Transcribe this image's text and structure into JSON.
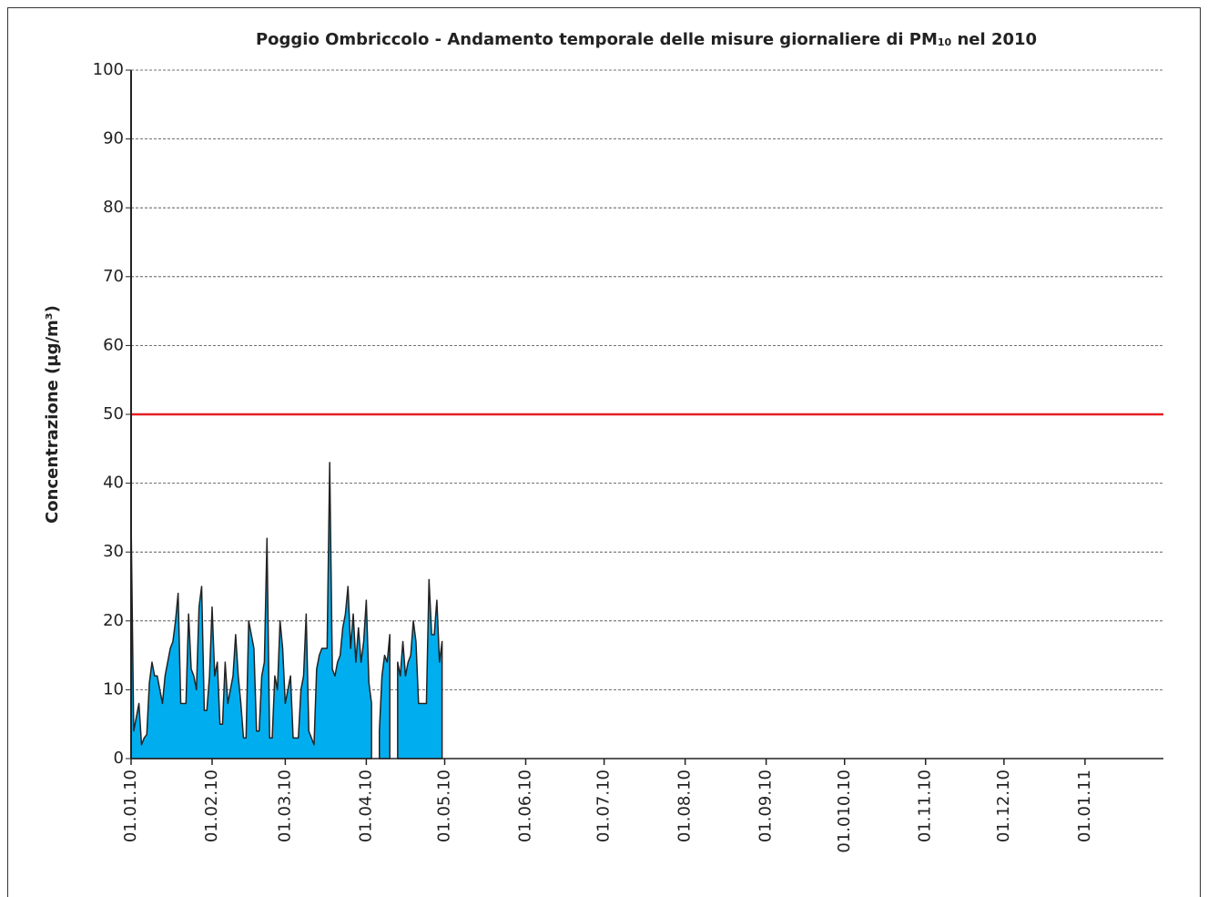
{
  "chart_data": {
    "type": "area",
    "title": [
      "Poggio Ombriccolo - Andamento temporale delle misure giornaliere di PM",
      "10",
      " nel 2010"
    ],
    "y_label": "Concentrazione (µg/m³)",
    "x": [
      0,
      1,
      2,
      3,
      4,
      5,
      6,
      7,
      8,
      9,
      10,
      11,
      12,
      13,
      14,
      15,
      16,
      17,
      18,
      19,
      20,
      21,
      22,
      23,
      24,
      25,
      26,
      27,
      28,
      29,
      30,
      31,
      32,
      33,
      34,
      35,
      36,
      37,
      38,
      39,
      40,
      41,
      42,
      43,
      44,
      45,
      46,
      47,
      48,
      49,
      50,
      51,
      52,
      53,
      54,
      55,
      56,
      57,
      58,
      59,
      60,
      61,
      62,
      63,
      64,
      65,
      66,
      67,
      68,
      69,
      70,
      71,
      72,
      73,
      74,
      75,
      76,
      77,
      78,
      79,
      80,
      81,
      82,
      83,
      84,
      85,
      86,
      87,
      88,
      89,
      90,
      91,
      92,
      93,
      94,
      95,
      96,
      97,
      98,
      99,
      100,
      101,
      102,
      103,
      104,
      105,
      106,
      107,
      108,
      109,
      110,
      111,
      112,
      113,
      114,
      115,
      116,
      117,
      118,
      119
    ],
    "series": [
      {
        "name": "PM10",
        "color": "#00aeef",
        "values": [
          35,
          4,
          6,
          8,
          2,
          3,
          3.5,
          11,
          14,
          12,
          12,
          10,
          8,
          12,
          14,
          16,
          17,
          20,
          24,
          8,
          8,
          8,
          21,
          13,
          12,
          10,
          22,
          25,
          7,
          7,
          12,
          22,
          12,
          14,
          5,
          5,
          14,
          8,
          10,
          12,
          18,
          12,
          8,
          3,
          3,
          20,
          18,
          16,
          4,
          4,
          12,
          14,
          32,
          3,
          3,
          12,
          10,
          20,
          16,
          8,
          10,
          12,
          3,
          3,
          3,
          10,
          12,
          21,
          4,
          3,
          2,
          13,
          15,
          16,
          16,
          16,
          43,
          13,
          12,
          14,
          15,
          19,
          21,
          25,
          16,
          21,
          14,
          19,
          14,
          17,
          23,
          11,
          8,
          null,
          null,
          4,
          12,
          15,
          14,
          18,
          null,
          null,
          14,
          12,
          17,
          12,
          14,
          15,
          20,
          17,
          8,
          8,
          8,
          8,
          26,
          18,
          18,
          23,
          14,
          17
        ]
      }
    ],
    "threshold": {
      "value": 50,
      "color": "#e31e24"
    },
    "xlim": [
      0,
      395
    ],
    "xticks": [
      {
        "value": 0,
        "label": "01.01.10"
      },
      {
        "value": 31,
        "label": "01.02.10"
      },
      {
        "value": 59,
        "label": "01.03.10"
      },
      {
        "value": 90,
        "label": "01.04.10"
      },
      {
        "value": 120,
        "label": "01.05.10"
      },
      {
        "value": 151,
        "label": "01.06.10"
      },
      {
        "value": 181,
        "label": "01.07.10"
      },
      {
        "value": 212,
        "label": "01.08.10"
      },
      {
        "value": 243,
        "label": "01.09.10"
      },
      {
        "value": 273,
        "label": "01.010.10"
      },
      {
        "value": 304,
        "label": "01.11.10"
      },
      {
        "value": 334,
        "label": "01.12.10"
      },
      {
        "value": 365,
        "label": "01.01.11"
      }
    ],
    "ylim": [
      0,
      100
    ],
    "yticks": [
      0,
      10,
      20,
      30,
      40,
      50,
      60,
      70,
      80,
      90,
      100
    ],
    "grid": true
  }
}
